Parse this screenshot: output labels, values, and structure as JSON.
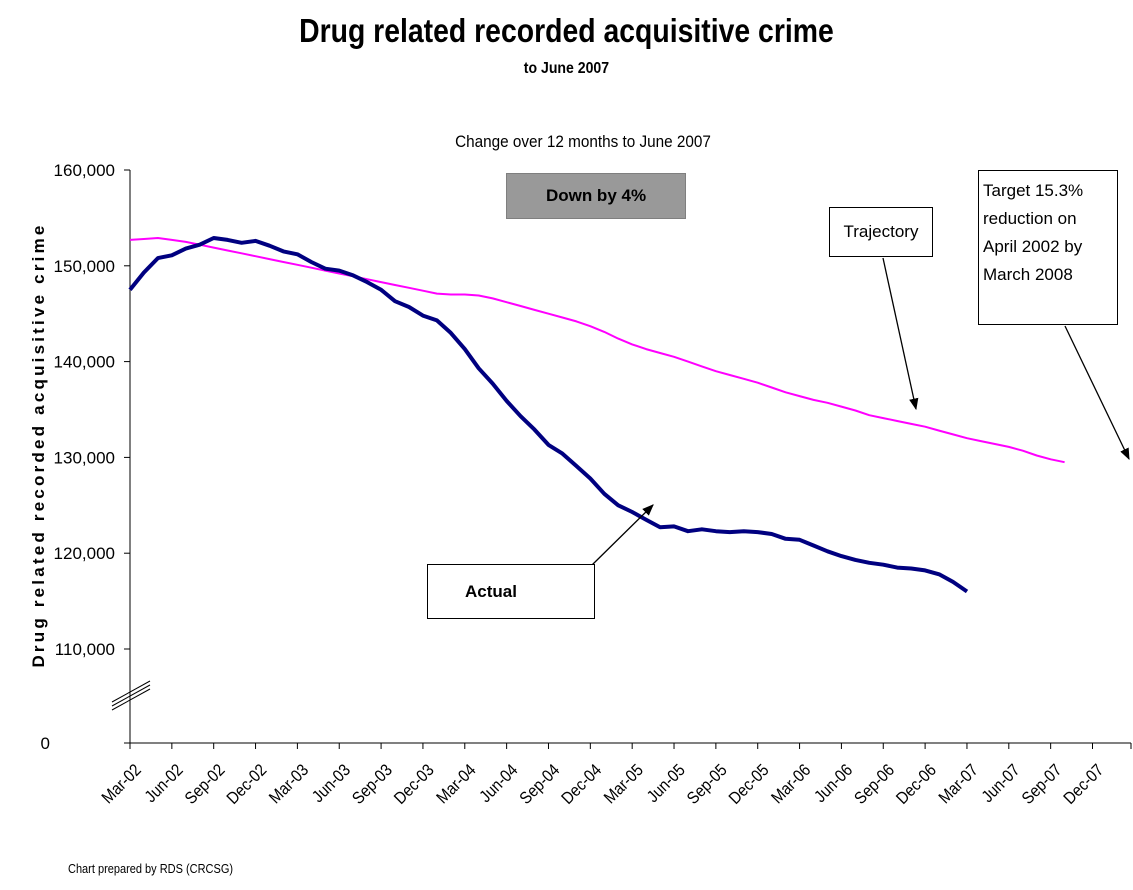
{
  "title": "Drug related recorded acquisitive crime",
  "subtitle": "to June 2007",
  "footnote": "Chart prepared by RDS (CRCSG)",
  "chart_data": {
    "type": "line",
    "title": "Drug related recorded acquisitive crime",
    "subtitle": "Change over 12 months to June 2007",
    "ylabel": "Drug related recorded acquisitive crime",
    "xlabel": "",
    "y_ticks": [
      "0",
      "110,000",
      "120,000",
      "130,000",
      "140,000",
      "150,000",
      "160,000"
    ],
    "y_tick_values": [
      0,
      110000,
      120000,
      130000,
      140000,
      150000,
      160000
    ],
    "ylim": [
      0,
      160000
    ],
    "y_axis_break": "between 0 and 110,000",
    "grid": false,
    "x_labels": [
      "Mar-02",
      "Jun-02",
      "Sep-02",
      "Dec-02",
      "Mar-03",
      "Jun-03",
      "Sep-03",
      "Dec-03",
      "Mar-04",
      "Jun-04",
      "Sep-04",
      "Dec-04",
      "Mar-05",
      "Jun-05",
      "Sep-05",
      "Dec-05",
      "Mar-06",
      "Jun-06",
      "Sep-06",
      "Dec-06",
      "Mar-07",
      "Jun-07",
      "Sep-07",
      "Dec-07"
    ],
    "x_labels_display": [
      "Mar-02",
      "Jun-02",
      "Sep-02",
      "Dec-02",
      "Mar-03",
      "Jun-03",
      "Sep-03",
      "Dec-03",
      "Mar-04",
      "Jun-04",
      "Sep-04",
      "Dec-04",
      "Mar-05",
      "Jun-05",
      "Sep-05",
      "Dec-05",
      "Mar-06",
      "Jun-06",
      "Sep-06",
      "Dec-06",
      "Mar-07",
      "Jun-07",
      "Sep-07",
      "Dec-07"
    ],
    "series": [
      {
        "name": "Actual",
        "color": "#000080",
        "values": [
          147500,
          149300,
          150800,
          151100,
          151800,
          152200,
          152900,
          152700,
          152400,
          152600,
          152100,
          151500,
          151200,
          150400,
          149700,
          149500,
          149000,
          148300,
          147500,
          146300,
          145700,
          144800,
          144300,
          143000,
          141300,
          139300,
          137700,
          135900,
          134300,
          132900,
          131300,
          130400,
          129100,
          127800,
          126200,
          125000,
          124300,
          123500,
          122700,
          122800,
          122300,
          122500,
          122300,
          122200,
          122300,
          122200,
          122000,
          121500,
          121400,
          120800,
          120200,
          119700,
          119300,
          119000,
          118800,
          118500,
          118400,
          118200,
          117800,
          117000,
          116000
        ]
      },
      {
        "name": "Trajectory",
        "color": "#ff00ff",
        "values": [
          152700,
          152800,
          152900,
          152700,
          152500,
          152200,
          151900,
          151600,
          151300,
          151000,
          150700,
          150400,
          150100,
          149800,
          149500,
          149200,
          148900,
          148600,
          148300,
          148000,
          147700,
          147400,
          147100,
          147000,
          147000,
          146900,
          146600,
          146200,
          145800,
          145400,
          145000,
          144600,
          144200,
          143700,
          143100,
          142400,
          141800,
          141300,
          140900,
          140500,
          140000,
          139500,
          139000,
          138600,
          138200,
          137800,
          137300,
          136800,
          136400,
          136000,
          135700,
          135300,
          134900,
          134400,
          134100,
          133800,
          133500,
          133200,
          132800,
          132400,
          132000,
          131700,
          131400,
          131100,
          130700,
          130200,
          129800,
          129500
        ]
      }
    ],
    "annotations": [
      {
        "text": "Down by 4%",
        "box_color": "#999999"
      },
      {
        "text": "Trajectory"
      },
      {
        "text_lines": [
          "Target 15.3%",
          "reduction on",
          "April 2002 by",
          "March 2008"
        ]
      },
      {
        "text": "Actual"
      }
    ]
  }
}
